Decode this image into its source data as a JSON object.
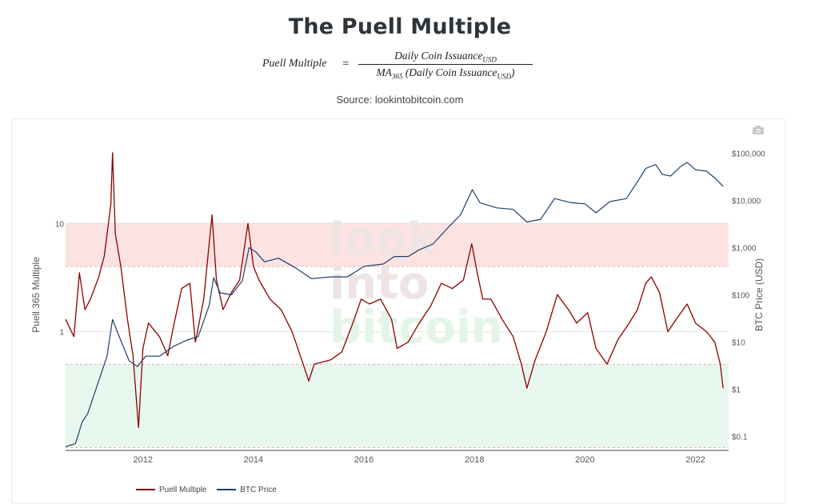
{
  "header": {
    "title": "The Puell Multiple",
    "source": "Source: lookintobitcoin.com"
  },
  "formula": {
    "lhs": "Puell Multiple",
    "eq": "=",
    "numerator": "Daily Coin Issuance",
    "numerator_sub": "USD",
    "denominator_prefix": "MA",
    "denominator_prefix_sub": "365",
    "denominator_body": "(Daily Coin Issuance",
    "denominator_sub": "USD",
    "denominator_close": ")"
  },
  "watermark": [
    "look",
    "into",
    "bitcoin"
  ],
  "toolbar": {
    "camera_icon": "camera-icon"
  },
  "chart_data": {
    "type": "line",
    "title": "The Puell Multiple",
    "xlabel": "",
    "ylabel_left": "Puell 365 Multiple",
    "ylabel_right": "BTC Price (USD)",
    "x_range": [
      2010.6,
      2022.6
    ],
    "x_ticks": [
      "2012",
      "2014",
      "2016",
      "2018",
      "2020",
      "2022"
    ],
    "left_axis": {
      "scale": "log",
      "range": [
        0.08,
        60
      ],
      "ticks": [
        {
          "v": 10,
          "label": "10"
        },
        {
          "v": 1,
          "label": "1"
        }
      ]
    },
    "right_axis": {
      "scale": "log",
      "range": [
        0.05,
        200000
      ],
      "ticks": [
        {
          "v": 100000,
          "label": "$100,000"
        },
        {
          "v": 10000,
          "label": "$10,000"
        },
        {
          "v": 1000,
          "label": "$1,000"
        },
        {
          "v": 100,
          "label": "$100"
        },
        {
          "v": 10,
          "label": "$10"
        },
        {
          "v": 1,
          "label": "$1"
        },
        {
          "v": 0.1,
          "label": "$0.1"
        }
      ]
    },
    "bands": [
      {
        "name": "high",
        "from": 4,
        "to": 10,
        "color": "#fde2e2"
      },
      {
        "name": "low",
        "from": 0.085,
        "to": 0.5,
        "color": "#e8f7ee"
      }
    ],
    "band_lines": [
      10,
      4,
      0.5,
      0.085
    ],
    "series": [
      {
        "name": "Puell Multiple",
        "axis": "left",
        "color": "#8b0000",
        "points": [
          [
            2010.6,
            1.3
          ],
          [
            2010.75,
            0.9
          ],
          [
            2010.85,
            3.5
          ],
          [
            2010.95,
            1.6
          ],
          [
            2011.05,
            2.0
          ],
          [
            2011.2,
            3.2
          ],
          [
            2011.3,
            5.0
          ],
          [
            2011.42,
            15
          ],
          [
            2011.45,
            45
          ],
          [
            2011.5,
            8
          ],
          [
            2011.6,
            4
          ],
          [
            2011.72,
            1.3
          ],
          [
            2011.82,
            0.6
          ],
          [
            2011.92,
            0.13
          ],
          [
            2012.0,
            0.7
          ],
          [
            2012.1,
            1.2
          ],
          [
            2012.3,
            0.9
          ],
          [
            2012.45,
            0.6
          ],
          [
            2012.55,
            1.1
          ],
          [
            2012.7,
            2.5
          ],
          [
            2012.85,
            2.8
          ],
          [
            2012.95,
            0.8
          ],
          [
            2013.1,
            2.0
          ],
          [
            2013.25,
            12.0
          ],
          [
            2013.33,
            3.0
          ],
          [
            2013.45,
            1.6
          ],
          [
            2013.6,
            2.3
          ],
          [
            2013.75,
            3.0
          ],
          [
            2013.9,
            10
          ],
          [
            2014.0,
            4.0
          ],
          [
            2014.1,
            3.0
          ],
          [
            2014.3,
            2.0
          ],
          [
            2014.5,
            1.6
          ],
          [
            2014.7,
            1.0
          ],
          [
            2014.9,
            0.5
          ],
          [
            2015.0,
            0.35
          ],
          [
            2015.1,
            0.5
          ],
          [
            2015.4,
            0.55
          ],
          [
            2015.6,
            0.65
          ],
          [
            2015.8,
            1.2
          ],
          [
            2015.95,
            2.0
          ],
          [
            2016.1,
            1.8
          ],
          [
            2016.3,
            2.0
          ],
          [
            2016.5,
            1.3
          ],
          [
            2016.6,
            0.7
          ],
          [
            2016.8,
            0.8
          ],
          [
            2017.0,
            1.2
          ],
          [
            2017.2,
            1.7
          ],
          [
            2017.4,
            2.8
          ],
          [
            2017.6,
            2.5
          ],
          [
            2017.8,
            3.0
          ],
          [
            2017.95,
            6.5
          ],
          [
            2018.05,
            3.5
          ],
          [
            2018.15,
            2.0
          ],
          [
            2018.3,
            2.0
          ],
          [
            2018.5,
            1.3
          ],
          [
            2018.7,
            0.9
          ],
          [
            2018.85,
            0.5
          ],
          [
            2018.95,
            0.3
          ],
          [
            2019.1,
            0.55
          ],
          [
            2019.3,
            1.0
          ],
          [
            2019.5,
            2.2
          ],
          [
            2019.7,
            1.6
          ],
          [
            2019.85,
            1.2
          ],
          [
            2020.05,
            1.5
          ],
          [
            2020.2,
            0.7
          ],
          [
            2020.4,
            0.5
          ],
          [
            2020.6,
            0.85
          ],
          [
            2020.8,
            1.2
          ],
          [
            2020.95,
            1.6
          ],
          [
            2021.1,
            2.8
          ],
          [
            2021.2,
            3.2
          ],
          [
            2021.35,
            2.3
          ],
          [
            2021.5,
            1.0
          ],
          [
            2021.65,
            1.3
          ],
          [
            2021.85,
            1.8
          ],
          [
            2022.0,
            1.2
          ],
          [
            2022.2,
            1.0
          ],
          [
            2022.35,
            0.8
          ],
          [
            2022.45,
            0.5
          ],
          [
            2022.5,
            0.3
          ]
        ]
      },
      {
        "name": "BTC Price",
        "axis": "right",
        "color": "#1f3f66",
        "points": [
          [
            2010.6,
            0.06
          ],
          [
            2010.78,
            0.07
          ],
          [
            2010.9,
            0.2
          ],
          [
            2011.0,
            0.3
          ],
          [
            2011.15,
            1.0
          ],
          [
            2011.35,
            5
          ],
          [
            2011.45,
            30
          ],
          [
            2011.55,
            15
          ],
          [
            2011.75,
            4
          ],
          [
            2011.9,
            3
          ],
          [
            2012.05,
            5
          ],
          [
            2012.3,
            5
          ],
          [
            2012.55,
            8
          ],
          [
            2012.8,
            11
          ],
          [
            2013.0,
            13
          ],
          [
            2013.2,
            60
          ],
          [
            2013.28,
            230
          ],
          [
            2013.4,
            110
          ],
          [
            2013.6,
            100
          ],
          [
            2013.8,
            200
          ],
          [
            2013.92,
            1000
          ],
          [
            2014.05,
            800
          ],
          [
            2014.2,
            500
          ],
          [
            2014.45,
            600
          ],
          [
            2014.75,
            380
          ],
          [
            2015.05,
            220
          ],
          [
            2015.4,
            240
          ],
          [
            2015.7,
            240
          ],
          [
            2016.0,
            400
          ],
          [
            2016.35,
            450
          ],
          [
            2016.55,
            650
          ],
          [
            2016.8,
            650
          ],
          [
            2017.0,
            900
          ],
          [
            2017.25,
            1200
          ],
          [
            2017.5,
            2500
          ],
          [
            2017.75,
            5000
          ],
          [
            2017.96,
            17000
          ],
          [
            2018.1,
            9000
          ],
          [
            2018.4,
            7000
          ],
          [
            2018.7,
            6500
          ],
          [
            2018.95,
            3500
          ],
          [
            2019.2,
            4000
          ],
          [
            2019.45,
            11000
          ],
          [
            2019.75,
            9000
          ],
          [
            2020.0,
            8500
          ],
          [
            2020.2,
            5500
          ],
          [
            2020.45,
            9500
          ],
          [
            2020.75,
            11000
          ],
          [
            2020.95,
            25000
          ],
          [
            2021.1,
            48000
          ],
          [
            2021.28,
            58000
          ],
          [
            2021.4,
            36000
          ],
          [
            2021.55,
            33000
          ],
          [
            2021.75,
            55000
          ],
          [
            2021.85,
            64000
          ],
          [
            2022.0,
            45000
          ],
          [
            2022.2,
            42000
          ],
          [
            2022.35,
            30000
          ],
          [
            2022.5,
            20000
          ]
        ]
      }
    ],
    "legend_position": "bottom-left"
  }
}
